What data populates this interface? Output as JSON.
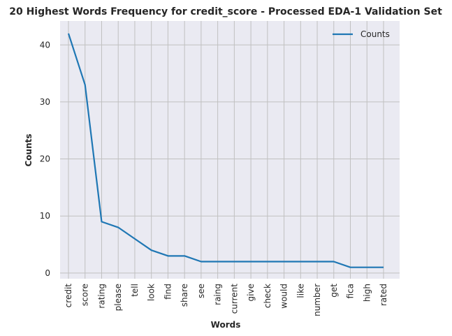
{
  "chart_data": {
    "type": "line",
    "title": "20 Highest Words Frequency for credit_score - Processed EDA-1 Validation Set",
    "xlabel": "Words",
    "ylabel": "Counts",
    "categories": [
      "credit",
      "score",
      "rating",
      "please",
      "tell",
      "look",
      "find",
      "share",
      "see",
      "raing",
      "current",
      "give",
      "check",
      "would",
      "like",
      "number",
      "get",
      "fica",
      "high",
      "rated"
    ],
    "series": [
      {
        "name": "Counts",
        "values": [
          42,
          33,
          9,
          8,
          6,
          4,
          3,
          3,
          2,
          2,
          2,
          2,
          2,
          2,
          2,
          2,
          2,
          1,
          1,
          1
        ]
      }
    ],
    "ylim": [
      -1,
      44.2
    ],
    "yticks": [
      0,
      10,
      20,
      30,
      40
    ],
    "grid": true,
    "legend": "top-right",
    "colors": {
      "line": "#1f77b4",
      "background": "#eaeaf2",
      "grid": "#c0c0c0"
    }
  }
}
